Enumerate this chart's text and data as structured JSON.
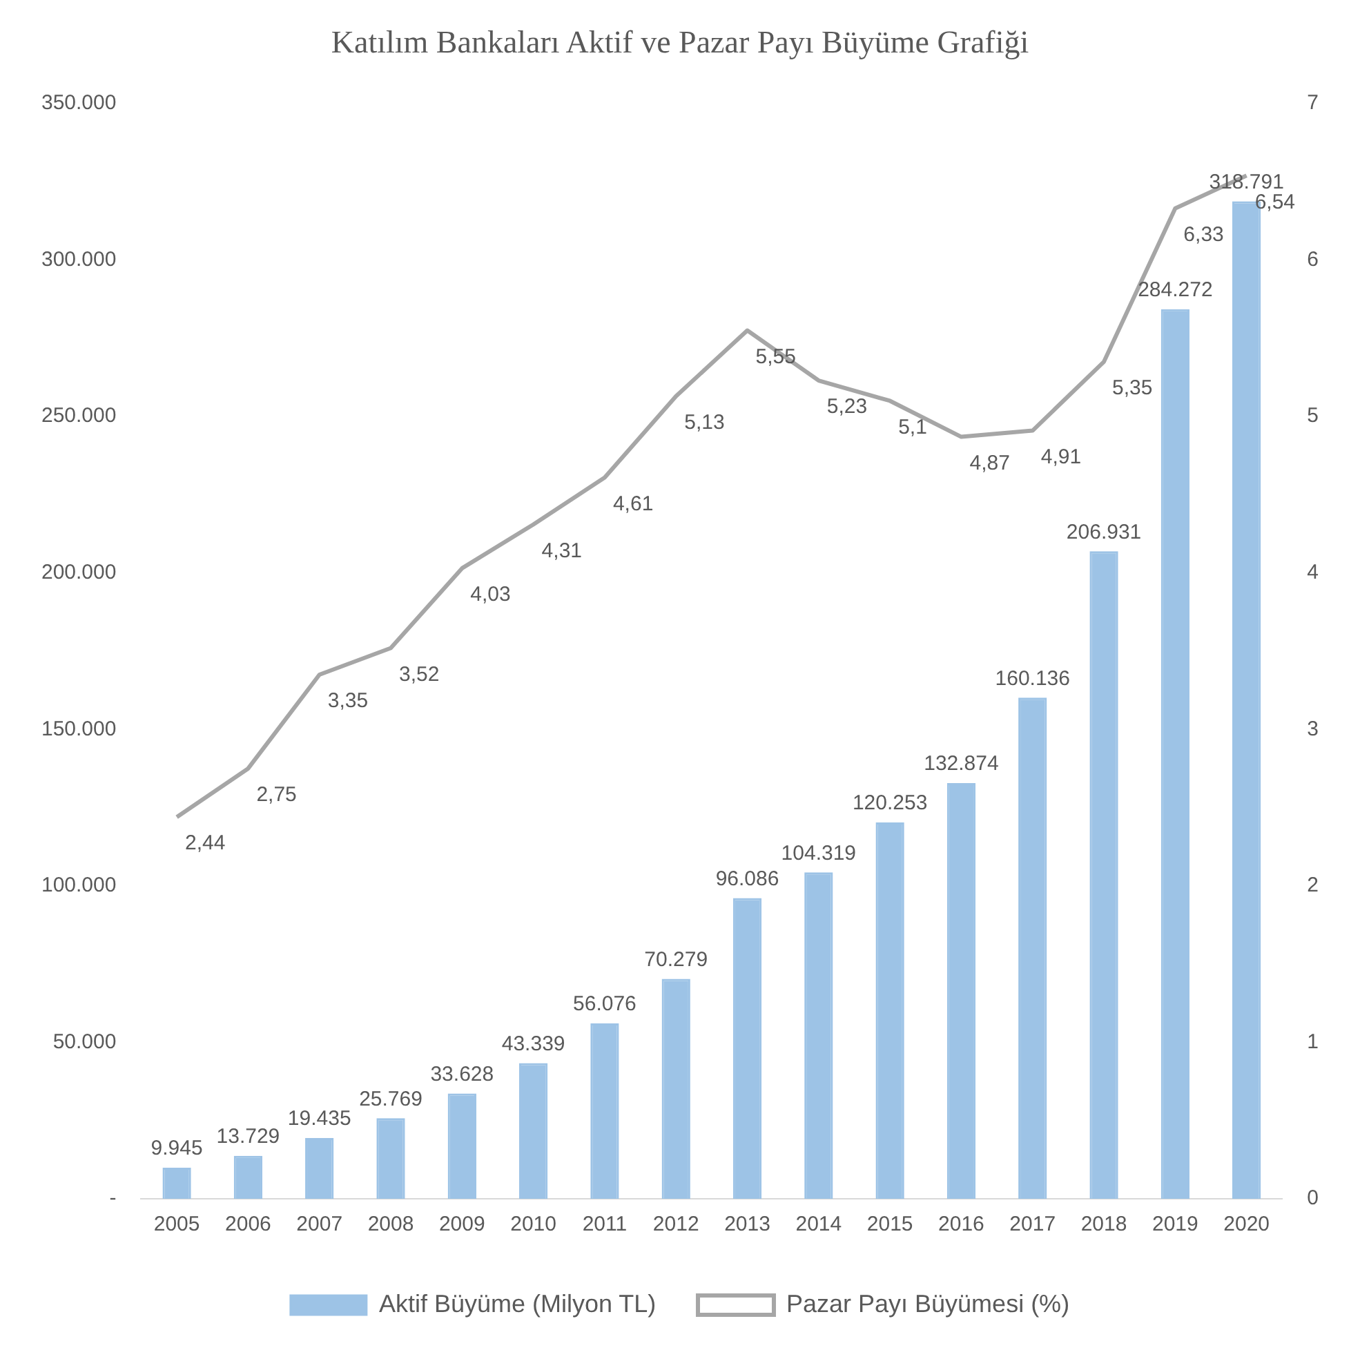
{
  "chart_data": {
    "type": "bar",
    "title": "Katılım Bankaları Aktif ve Pazar Payı Büyüme Grafiği",
    "categories": [
      "2005",
      "2006",
      "2007",
      "2008",
      "2009",
      "2010",
      "2011",
      "2012",
      "2013",
      "2014",
      "2015",
      "2016",
      "2017",
      "2018",
      "2019",
      "2020"
    ],
    "series": [
      {
        "name": "Aktif Büyüme (Milyon TL)",
        "color": "#9dc3e6",
        "values": [
          9945,
          13729,
          19435,
          25769,
          33628,
          43339,
          56076,
          70279,
          96086,
          104319,
          120253,
          132874,
          160136,
          206931,
          284272,
          318791
        ],
        "value_labels": [
          "9.945",
          "13.729",
          "19.435",
          "25.769",
          "33.628",
          "43.339",
          "56.076",
          "70.279",
          "96.086",
          "104.319",
          "120.253",
          "132.874",
          "160.136",
          "206.931",
          "284.272",
          "318.791"
        ]
      },
      {
        "name": "Pazar Payı Büyümesi (%)",
        "type": "line",
        "axis": "y2",
        "color": "#a6a6a6",
        "values": [
          2.44,
          2.75,
          3.35,
          3.52,
          4.03,
          4.31,
          4.61,
          5.13,
          5.55,
          5.23,
          5.1,
          4.87,
          4.91,
          5.35,
          6.33,
          6.54
        ],
        "value_labels": [
          "2,44",
          "2,75",
          "3,35",
          "3,52",
          "4,03",
          "4,31",
          "4,61",
          "5,13",
          "5,55",
          "5,23",
          "5,1",
          "4,87",
          "4,91",
          "5,35",
          "6,33",
          "6,54"
        ]
      }
    ],
    "ylim": [
      0,
      350000
    ],
    "yticks": [
      {
        "value": 0,
        "label": "-"
      },
      {
        "value": 50000,
        "label": "50.000"
      },
      {
        "value": 100000,
        "label": "100.000"
      },
      {
        "value": 150000,
        "label": "150.000"
      },
      {
        "value": 200000,
        "label": "200.000"
      },
      {
        "value": 250000,
        "label": "250.000"
      },
      {
        "value": 300000,
        "label": "300.000"
      },
      {
        "value": 350000,
        "label": "350.000"
      }
    ],
    "y2lim": [
      0,
      7
    ],
    "y2ticks": [
      0,
      1,
      2,
      3,
      4,
      5,
      6,
      7
    ],
    "grid": false,
    "legend": "bottom",
    "marker": "none"
  }
}
